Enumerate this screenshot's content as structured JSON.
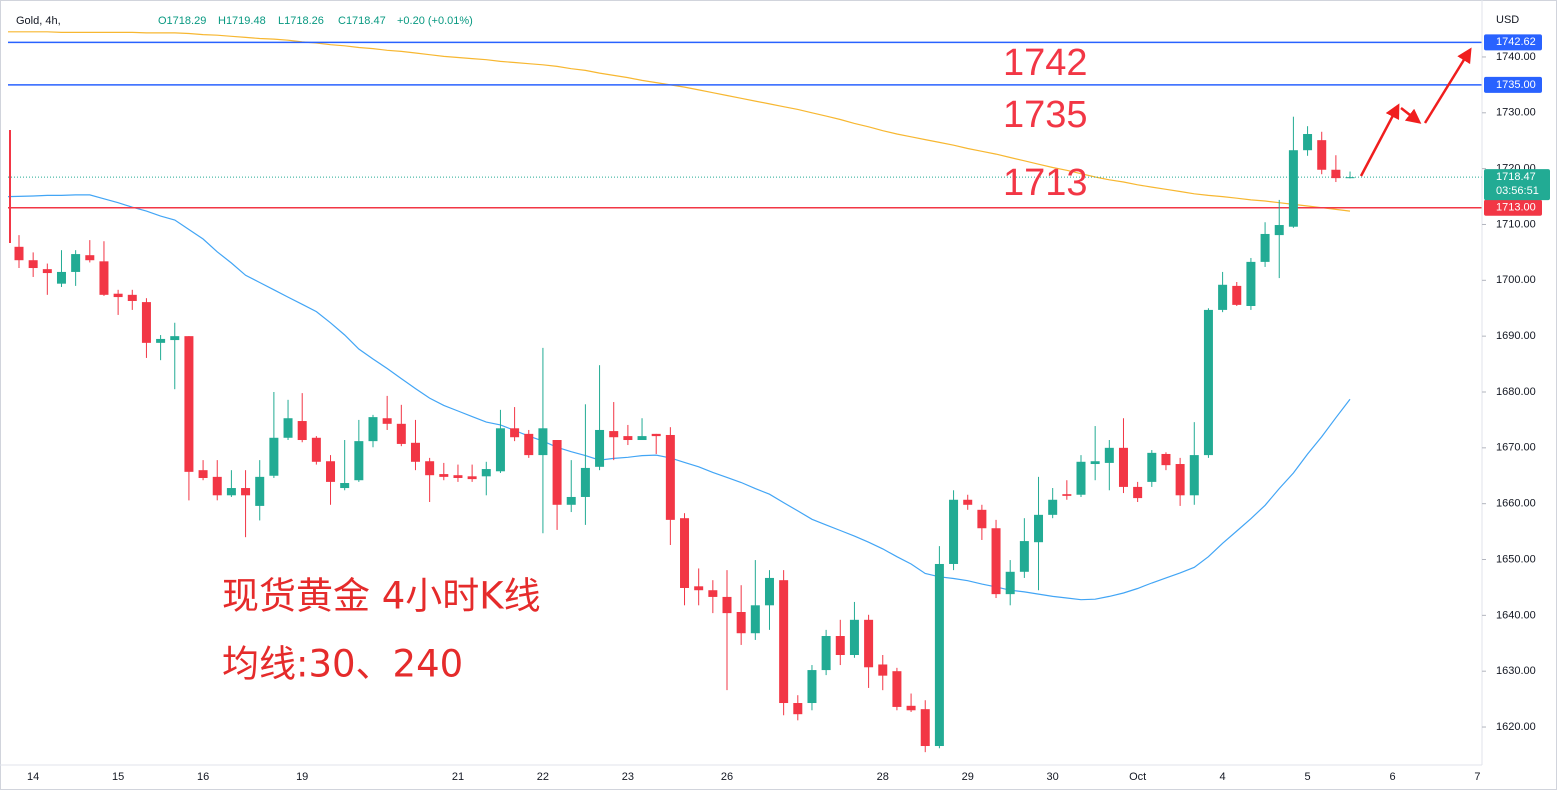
{
  "chart_data": {
    "type": "candlestick",
    "title": "Gold, 4h,",
    "ohlc": [
      "O1718.29",
      "H1719.48",
      "L1718.26",
      "C1718.47",
      "+0.20 (+0.01%)"
    ],
    "y_unit": "USD",
    "categories": [
      null,
      "14",
      null,
      null,
      null,
      null,
      null,
      "15",
      null,
      null,
      null,
      null,
      null,
      "16",
      null,
      null,
      null,
      null,
      null,
      null,
      "19",
      null,
      null,
      null,
      null,
      null,
      null,
      null,
      null,
      null,
      null,
      "21",
      null,
      null,
      null,
      null,
      null,
      "22",
      null,
      null,
      null,
      null,
      null,
      "23",
      null,
      null,
      null,
      null,
      null,
      null,
      "26",
      null,
      null,
      null,
      null,
      null,
      null,
      null,
      null,
      null,
      null,
      "28",
      null,
      null,
      null,
      null,
      null,
      "29",
      null,
      null,
      null,
      null,
      null,
      "30",
      null,
      null,
      null,
      null,
      null,
      "Oct",
      null,
      null,
      null,
      null,
      null,
      "4",
      null,
      null,
      null,
      null,
      null,
      "5",
      null,
      null,
      null,
      null,
      null,
      "6",
      null,
      null,
      null,
      null,
      null,
      "7"
    ],
    "open": [
      1706.0,
      1703.6,
      1702.0,
      1699.4,
      1701.5,
      1704.5,
      1703.4,
      1697.6,
      1697.4,
      1696.1,
      1688.8,
      1689.3,
      1690.0,
      1666.0,
      1664.8,
      1661.5,
      1662.8,
      1659.6,
      1665.0,
      1671.8,
      1674.8,
      1671.8,
      1667.6,
      1662.8,
      1664.2,
      1671.2,
      1675.3,
      1674.3,
      1670.9,
      1667.6,
      1665.3,
      1665.1,
      1664.9,
      1664.9,
      1665.8,
      1673.5,
      1672.5,
      1668.7,
      1671.4,
      1659.8,
      1661.2,
      1666.6,
      1673.0,
      1672.1,
      1671.4,
      1672.5,
      1672.3,
      1657.4,
      1645.2,
      1644.5,
      1643.3,
      1640.6,
      1636.8,
      1641.8,
      1646.3,
      1624.3,
      1624.3,
      1630.2,
      1636.3,
      1632.9,
      1639.2,
      1631.2,
      1630.0,
      1623.8,
      1623.2,
      1616.6,
      1649.2,
      1660.7,
      1658.9,
      1655.6,
      1643.8,
      1647.8,
      1653.1,
      1658.0,
      1661.7,
      1661.6,
      1667.1,
      1667.3,
      1670.0,
      1663.0,
      1663.9,
      1668.9,
      1667.1,
      1661.5,
      1668.7,
      1694.7,
      1699.0,
      1695.4,
      1703.3,
      1708.1,
      1709.6,
      1723.3,
      1725.1,
      1719.8,
      1718.29,
      null,
      null,
      null,
      null,
      null,
      null,
      null,
      null,
      null
    ],
    "high": [
      1708.1,
      1705.0,
      1703.0,
      1705.4,
      1705.4,
      1707.2,
      1707.0,
      1698.3,
      1698.3,
      1696.8,
      1690.2,
      1692.4,
      1690.0,
      1667.8,
      1667.8,
      1666.0,
      1666.0,
      1667.8,
      1680.0,
      1678.6,
      1679.8,
      1672.1,
      1668.7,
      1671.4,
      1675.0,
      1675.9,
      1679.3,
      1677.7,
      1675.0,
      1668.2,
      1667.3,
      1667.0,
      1667.0,
      1667.5,
      1676.8,
      1677.3,
      1673.2,
      1687.9,
      1671.4,
      1667.8,
      1677.8,
      1684.8,
      1678.2,
      1674.1,
      1675.3,
      1672.5,
      1673.7,
      1658.3,
      1648.4,
      1646.3,
      1648.1,
      1645.4,
      1649.9,
      1648.1,
      1648.1,
      1625.7,
      1631.1,
      1637.4,
      1639.2,
      1642.4,
      1640.1,
      1632.9,
      1630.6,
      1626.0,
      1624.8,
      1652.4,
      1662.4,
      1661.6,
      1659.8,
      1657.1,
      1649.9,
      1657.4,
      1664.8,
      1662.8,
      1664.2,
      1668.7,
      1673.9,
      1671.4,
      1675.3,
      1663.9,
      1669.6,
      1669.2,
      1668.2,
      1674.6,
      1695.0,
      1701.5,
      1699.7,
      1704.0,
      1710.4,
      1714.4,
      1729.3,
      1727.6,
      1726.6,
      1722.4,
      1719.48,
      null,
      null,
      null,
      null,
      null,
      null,
      null,
      null,
      null
    ],
    "low": [
      1702.2,
      1700.6,
      1697.4,
      1698.8,
      1699.0,
      1703.2,
      1697.2,
      1693.8,
      1694.7,
      1686.1,
      1685.7,
      1680.5,
      1660.6,
      1664.2,
      1660.6,
      1661.2,
      1654.0,
      1657.0,
      1664.6,
      1671.4,
      1671.0,
      1667.0,
      1659.8,
      1662.4,
      1663.9,
      1670.1,
      1673.2,
      1670.3,
      1666.0,
      1660.3,
      1664.2,
      1663.9,
      1663.9,
      1661.5,
      1665.5,
      1671.2,
      1668.2,
      1654.7,
      1655.3,
      1658.5,
      1656.2,
      1666.0,
      1667.8,
      1670.5,
      1671.4,
      1668.9,
      1652.6,
      1641.8,
      1641.8,
      1640.4,
      1626.6,
      1634.7,
      1635.6,
      1637.4,
      1622.1,
      1621.2,
      1623.0,
      1629.3,
      1631.1,
      1632.4,
      1627.0,
      1626.6,
      1623.0,
      1622.7,
      1615.5,
      1616.2,
      1648.1,
      1658.9,
      1653.5,
      1643.1,
      1641.8,
      1646.7,
      1644.5,
      1657.4,
      1660.7,
      1661.2,
      1664.2,
      1662.4,
      1661.9,
      1660.3,
      1663.0,
      1666.0,
      1659.6,
      1659.8,
      1668.2,
      1694.3,
      1695.4,
      1694.7,
      1702.4,
      1700.4,
      1709.4,
      1722.3,
      1719.0,
      1717.6,
      1718.26,
      null,
      null,
      null,
      null,
      null,
      null,
      null,
      null,
      null
    ],
    "close": [
      1703.6,
      1702.2,
      1701.3,
      1701.5,
      1704.7,
      1703.6,
      1697.4,
      1697.0,
      1696.3,
      1688.8,
      1689.5,
      1690.0,
      1665.7,
      1664.6,
      1661.5,
      1662.8,
      1661.5,
      1664.8,
      1671.8,
      1675.3,
      1671.4,
      1667.5,
      1663.9,
      1663.7,
      1671.2,
      1675.5,
      1674.3,
      1670.7,
      1667.5,
      1665.1,
      1664.8,
      1664.6,
      1664.4,
      1666.2,
      1673.5,
      1671.9,
      1668.7,
      1673.5,
      1659.8,
      1661.2,
      1666.4,
      1673.2,
      1671.9,
      1671.4,
      1672.1,
      1672.1,
      1657.1,
      1644.9,
      1644.5,
      1643.3,
      1640.4,
      1636.8,
      1641.8,
      1646.7,
      1624.3,
      1622.3,
      1630.2,
      1636.3,
      1632.9,
      1639.2,
      1630.7,
      1629.2,
      1623.6,
      1623.0,
      1616.6,
      1649.2,
      1660.7,
      1659.8,
      1655.6,
      1643.8,
      1647.8,
      1653.3,
      1658.0,
      1660.7,
      1661.4,
      1667.5,
      1667.6,
      1670.0,
      1663.0,
      1661.0,
      1669.1,
      1666.9,
      1661.5,
      1668.7,
      1694.7,
      1699.2,
      1695.6,
      1703.3,
      1708.3,
      1709.9,
      1723.3,
      1726.2,
      1719.8,
      1718.3,
      1718.47,
      null,
      null,
      null,
      null,
      null,
      null,
      null,
      null,
      null
    ],
    "up_color": "#22ab94",
    "down_color": "#f23645",
    "series": [
      {
        "color": "#42a5f5",
        "values": [
          1715.0,
          1715.1,
          1715.2,
          1715.2,
          1715.3,
          1715.3,
          1714.6,
          1713.9,
          1713.1,
          1712.4,
          1711.5,
          1710.8,
          1709.1,
          1707.4,
          1705.1,
          1703.1,
          1700.9,
          1699.6,
          1698.3,
          1697.0,
          1695.7,
          1694.4,
          1692.4,
          1690.2,
          1687.7,
          1685.9,
          1684.2,
          1682.4,
          1680.6,
          1678.9,
          1677.6,
          1676.6,
          1675.6,
          1674.6,
          1674.1,
          1673.1,
          1672.1,
          1671.2,
          1670.1,
          1669.3,
          1668.6,
          1667.8,
          1668.1,
          1668.3,
          1668.6,
          1668.7,
          1668.2,
          1667.4,
          1666.6,
          1665.6,
          1664.7,
          1663.8,
          1662.7,
          1661.7,
          1660.2,
          1658.7,
          1657.2,
          1656.2,
          1655.2,
          1654.2,
          1653.1,
          1651.9,
          1650.5,
          1649.2,
          1647.5,
          1646.9,
          1646.6,
          1646.2,
          1645.6,
          1645.1,
          1644.5,
          1644.2,
          1643.8,
          1643.4,
          1643.1,
          1642.8,
          1642.9,
          1643.4,
          1644.0,
          1644.8,
          1645.8,
          1646.7,
          1647.6,
          1648.6,
          1650.5,
          1652.9,
          1655.1,
          1657.3,
          1659.7,
          1662.7,
          1665.5,
          1668.9,
          1672.0,
          1675.4,
          1678.7,
          null,
          null,
          null,
          null,
          null,
          null,
          null,
          null,
          null
        ]
      },
      {
        "color": "#f7b731",
        "values": [
          1744.5,
          1744.5,
          1744.5,
          1744.4,
          1744.4,
          1744.4,
          1744.4,
          1744.4,
          1744.4,
          1744.3,
          1744.3,
          1744.3,
          1744.2,
          1744.0,
          1743.9,
          1743.7,
          1743.5,
          1743.3,
          1743.2,
          1743.0,
          1742.7,
          1742.5,
          1742.2,
          1742.0,
          1741.7,
          1741.5,
          1741.2,
          1741.0,
          1740.7,
          1740.4,
          1740.1,
          1739.9,
          1739.7,
          1739.5,
          1739.2,
          1739.0,
          1738.8,
          1738.6,
          1738.3,
          1737.9,
          1737.6,
          1737.1,
          1736.7,
          1736.3,
          1735.8,
          1735.4,
          1735.0,
          1734.6,
          1734.1,
          1733.6,
          1733.1,
          1732.6,
          1732.1,
          1731.6,
          1731.1,
          1730.6,
          1730.0,
          1729.4,
          1728.8,
          1728.1,
          1727.5,
          1726.8,
          1726.2,
          1725.7,
          1725.2,
          1724.7,
          1724.2,
          1723.6,
          1723.1,
          1722.6,
          1722.0,
          1721.4,
          1720.8,
          1720.2,
          1719.7,
          1719.1,
          1718.5,
          1718.0,
          1717.6,
          1717.1,
          1716.7,
          1716.3,
          1715.9,
          1715.5,
          1715.2,
          1715.0,
          1714.7,
          1714.4,
          1714.2,
          1713.9,
          1713.6,
          1713.3,
          1713.0,
          1712.7,
          1712.4,
          null,
          null,
          null,
          null,
          null,
          null,
          null,
          null,
          null
        ]
      }
    ],
    "levels": {
      "values": [
        1742.62,
        1735,
        1713
      ],
      "value_labels": [
        "1742.62",
        "1735.00",
        "1713.00"
      ],
      "colors": [
        "#2962ff",
        "#2962ff",
        "#f23645"
      ]
    },
    "last": 1718.47,
    "last_color": "#22ab94",
    "countdown": "03:56:51",
    "ylim": [
      1613.2,
      1750.2
    ],
    "yticks": [
      {
        "value": 1620,
        "label": "1620.00"
      },
      {
        "value": 1630,
        "label": "1630.00"
      },
      {
        "value": 1640,
        "label": "1640.00"
      },
      {
        "value": 1650,
        "label": "1650.00"
      },
      {
        "value": 1660,
        "label": "1660.00"
      },
      {
        "value": 1670,
        "label": "1670.00"
      },
      {
        "value": 1680,
        "label": "1680.00"
      },
      {
        "value": 1690,
        "label": "1690.00"
      },
      {
        "value": 1700,
        "label": "1700.00"
      },
      {
        "value": 1710,
        "label": "1710.00"
      },
      {
        "value": 1720,
        "label": "1720.00"
      },
      {
        "value": 1730,
        "label": "1730.00"
      },
      {
        "value": 1740,
        "label": "1740.00"
      }
    ],
    "grid": false,
    "annotations": [
      "1742",
      "1735",
      "1713",
      "现货黄金 4小时K线",
      "均线:30、240"
    ]
  }
}
